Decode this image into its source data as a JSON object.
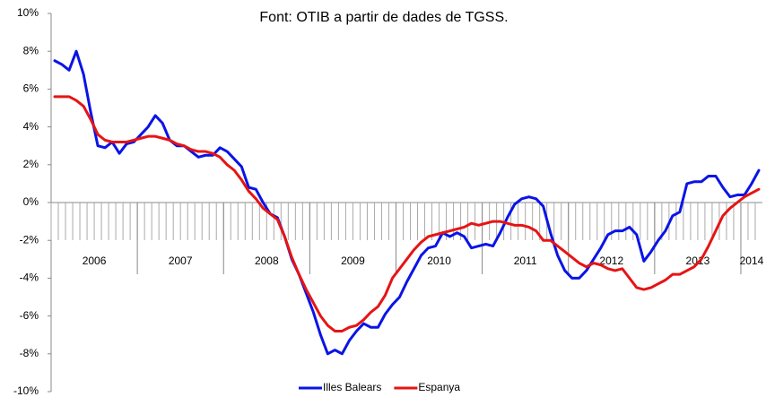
{
  "chart_data": {
    "type": "line",
    "title": "Font: OTIB a partir de dades de TGSS.",
    "categories": [
      "2006",
      null,
      null,
      null,
      null,
      null,
      null,
      null,
      null,
      null,
      null,
      null,
      "2007",
      null,
      null,
      null,
      null,
      null,
      null,
      null,
      null,
      null,
      null,
      null,
      "2008",
      null,
      null,
      null,
      null,
      null,
      null,
      null,
      null,
      null,
      null,
      null,
      "2009",
      null,
      null,
      null,
      null,
      null,
      null,
      null,
      null,
      null,
      null,
      null,
      "2010",
      null,
      null,
      null,
      null,
      null,
      null,
      null,
      null,
      null,
      null,
      null,
      "2011",
      null,
      null,
      null,
      null,
      null,
      null,
      null,
      null,
      null,
      null,
      null,
      "2012",
      null,
      null,
      null,
      null,
      null,
      null,
      null,
      null,
      null,
      null,
      null,
      "2013",
      null,
      null,
      null,
      null,
      null,
      null,
      null,
      null,
      null,
      null,
      null,
      "2014",
      null,
      null
    ],
    "series": [
      {
        "name": "Illes Balears",
        "color": "#0a14e6",
        "values": [
          7.5,
          7.3,
          7.0,
          8.0,
          6.8,
          4.8,
          3.0,
          2.9,
          3.2,
          2.6,
          3.1,
          3.2,
          3.6,
          4.0,
          4.6,
          4.2,
          3.3,
          3.0,
          3.0,
          2.7,
          2.4,
          2.5,
          2.5,
          2.9,
          2.7,
          2.3,
          1.9,
          0.8,
          0.7,
          0.0,
          -0.6,
          -0.8,
          -1.8,
          -3.0,
          -3.8,
          -4.8,
          -5.8,
          -7.0,
          -8.0,
          -7.8,
          -8.0,
          -7.3,
          -6.8,
          -6.4,
          -6.6,
          -6.6,
          -5.9,
          -5.4,
          -5.0,
          -4.2,
          -3.5,
          -2.8,
          -2.4,
          -2.3,
          -1.6,
          -1.8,
          -1.6,
          -1.8,
          -2.4,
          -2.3,
          -2.2,
          -2.3,
          -1.6,
          -0.8,
          -0.1,
          0.2,
          0.3,
          0.2,
          -0.2,
          -1.6,
          -2.8,
          -3.6,
          -4.0,
          -4.0,
          -3.6,
          -3.0,
          -2.4,
          -1.7,
          -1.5,
          -1.5,
          -1.3,
          -1.7,
          -3.1,
          -2.6,
          -2.0,
          -1.5,
          -0.7,
          -0.5,
          1.0,
          1.1,
          1.1,
          1.4,
          1.4,
          0.8,
          0.3,
          0.4,
          0.4,
          1.0,
          1.7
        ]
      },
      {
        "name": "Espanya",
        "color": "#e61414",
        "values": [
          5.6,
          5.6,
          5.6,
          5.4,
          5.1,
          4.4,
          3.6,
          3.3,
          3.2,
          3.2,
          3.2,
          3.3,
          3.4,
          3.5,
          3.5,
          3.4,
          3.3,
          3.1,
          3.0,
          2.8,
          2.7,
          2.7,
          2.6,
          2.4,
          2.0,
          1.7,
          1.2,
          0.6,
          0.2,
          -0.3,
          -0.6,
          -0.9,
          -1.8,
          -2.9,
          -3.8,
          -4.6,
          -5.3,
          -6.0,
          -6.5,
          -6.8,
          -6.8,
          -6.6,
          -6.5,
          -6.2,
          -5.8,
          -5.5,
          -4.9,
          -4.0,
          -3.5,
          -3.0,
          -2.5,
          -2.1,
          -1.8,
          -1.7,
          -1.6,
          -1.5,
          -1.4,
          -1.3,
          -1.1,
          -1.2,
          -1.1,
          -1.0,
          -1.0,
          -1.1,
          -1.2,
          -1.2,
          -1.3,
          -1.5,
          -2.0,
          -2.0,
          -2.3,
          -2.6,
          -2.9,
          -3.2,
          -3.4,
          -3.2,
          -3.3,
          -3.5,
          -3.6,
          -3.5,
          -4.0,
          -4.5,
          -4.6,
          -4.5,
          -4.3,
          -4.1,
          -3.8,
          -3.8,
          -3.6,
          -3.4,
          -3.0,
          -2.3,
          -1.5,
          -0.7,
          -0.3,
          0.0,
          0.3,
          0.5,
          0.7
        ]
      }
    ],
    "ylim": [
      -10,
      10
    ],
    "yticks": [
      {
        "value": -10,
        "label": "-10%"
      },
      {
        "value": -8,
        "label": "-8%"
      },
      {
        "value": -6,
        "label": "-6%"
      },
      {
        "value": -4,
        "label": "-4%"
      },
      {
        "value": -2,
        "label": "-2%"
      },
      {
        "value": 0,
        "label": "0%"
      },
      {
        "value": 2,
        "label": "2%"
      },
      {
        "value": 4,
        "label": "4%"
      },
      {
        "value": 6,
        "label": "6%"
      },
      {
        "value": 8,
        "label": "8%"
      },
      {
        "value": 10,
        "label": "10%"
      }
    ],
    "grid": false,
    "legend": "bottom"
  }
}
